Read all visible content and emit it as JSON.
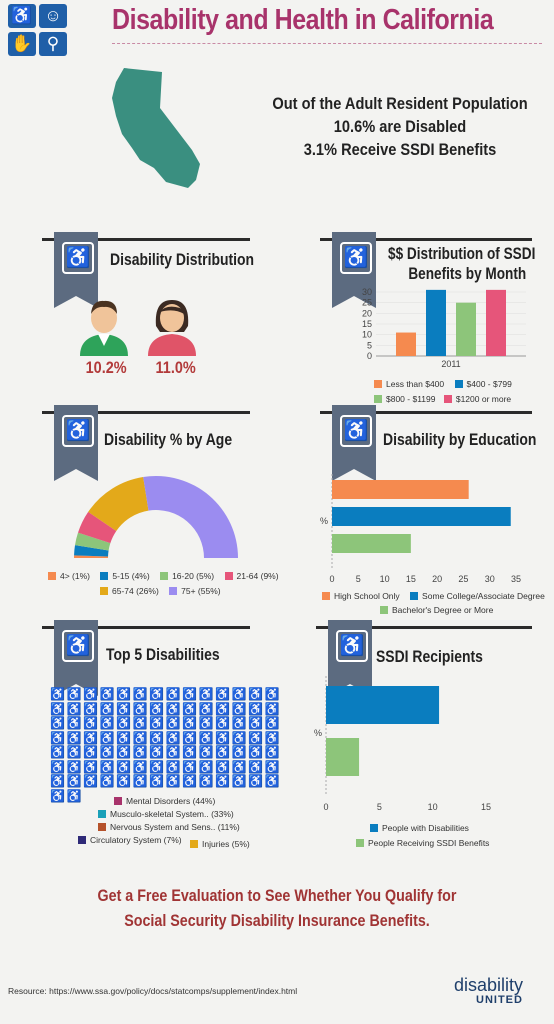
{
  "header": {
    "title": "Disability and Health in California",
    "headline_lines": [
      "Out of the Adult Resident Population",
      "10.6% are Disabled",
      "3.1% Receive SSDI Benefits"
    ]
  },
  "colors": {
    "title": "#a8336b",
    "ribbon": "#5c6b80",
    "state": "#3a8f80",
    "orange": "#f58a4f",
    "blue": "#0a7dbf",
    "green": "#8dc57a",
    "pink": "#e6557a",
    "gold": "#e3a91a",
    "purple": "#9b8cf0"
  },
  "sections": {
    "distribution": {
      "title": "Disability Distribution",
      "male_pct": "10.2%",
      "female_pct": "11.0%"
    },
    "ssdi_month": {
      "title_line1": "$$ Distribution of SSDI",
      "title_line2": "Benefits by Month"
    },
    "age": {
      "title": "Disability % by Age"
    },
    "education": {
      "title": "Disability by Education"
    },
    "top5": {
      "title": "Top 5 Disabilities"
    },
    "recipients": {
      "title": "SSDI Recipients"
    }
  },
  "chart_data": [
    {
      "type": "bar",
      "title": "$$ Distribution of SSDI Benefits by Month",
      "categories": [
        "2011"
      ],
      "ylim": [
        0,
        30
      ],
      "yticks": [
        "0",
        "5",
        "10",
        "15",
        "20",
        "25",
        "30"
      ],
      "series": [
        {
          "name": "Less than $400",
          "values": [
            11
          ],
          "color": "#f58a4f"
        },
        {
          "name": "$400 - $799",
          "values": [
            31
          ],
          "color": "#0a7dbf"
        },
        {
          "name": "$800 - $1199",
          "values": [
            25
          ],
          "color": "#8dc57a"
        },
        {
          "name": "$1200 or more",
          "values": [
            31
          ],
          "color": "#e6557a"
        }
      ]
    },
    {
      "type": "pie",
      "title": "Disability % by Age",
      "slices": [
        {
          "label": "4> (1%)",
          "value": 1,
          "color": "#f58a4f"
        },
        {
          "label": "5-15 (4%)",
          "value": 4,
          "color": "#0a7dbf"
        },
        {
          "label": "16-20 (5%)",
          "value": 5,
          "color": "#8dc57a"
        },
        {
          "label": "21-64 (9%)",
          "value": 9,
          "color": "#e6557a"
        },
        {
          "label": "65-74 (26%)",
          "value": 26,
          "color": "#e3a91a"
        },
        {
          "label": "75+ (55%)",
          "value": 55,
          "color": "#9b8cf0"
        }
      ]
    },
    {
      "type": "bar",
      "orientation": "horizontal",
      "title": "Disability by Education",
      "ylabel": "%",
      "xlim": [
        0,
        35
      ],
      "xticks": [
        "0",
        "5",
        "10",
        "15",
        "20",
        "25",
        "30",
        "35"
      ],
      "series": [
        {
          "name": "High School Only",
          "values": [
            26
          ],
          "color": "#f58a4f"
        },
        {
          "name": "Some College/Associate Degree",
          "values": [
            34
          ],
          "color": "#0a7dbf"
        },
        {
          "name": "Bachelor's Degree or More",
          "values": [
            15
          ],
          "color": "#8dc57a"
        }
      ]
    },
    {
      "type": "bar",
      "orientation": "horizontal",
      "title": "SSDI Recipients",
      "ylabel": "%",
      "xlim": [
        0,
        15
      ],
      "xticks": [
        "0",
        "5",
        "10",
        "15"
      ],
      "series": [
        {
          "name": "People with Disabilities",
          "values": [
            10.6
          ],
          "color": "#0a7dbf"
        },
        {
          "name": "People Receiving SSDI Benefits",
          "values": [
            3.1
          ],
          "color": "#8dc57a"
        }
      ]
    },
    {
      "type": "pictograph",
      "title": "Top 5 Disabilities",
      "categories": [
        {
          "label": "Mental Disorders (44%)",
          "value": 44,
          "color": "#a8336b"
        },
        {
          "label": "Musculo-skeletal System.. (33%)",
          "value": 33,
          "color": "#1aa0b8"
        },
        {
          "label": "Nervous System and Sens.. (11%)",
          "value": 11,
          "color": "#b5522b"
        },
        {
          "label": "Circulatory System (7%)",
          "value": 7,
          "color": "#2e2a78"
        },
        {
          "label": "Injuries (5%)",
          "value": 5,
          "color": "#e3a91a"
        }
      ]
    }
  ],
  "footer": {
    "cta": "Get a Free Evaluation to See Whether You Qualify for Social Security Disability Insurance Benefits.",
    "resource": "Resource: https://www.ssa.gov/policy/docs/statcomps/supplement/index.html",
    "brand_top": "disability",
    "brand_bottom": "UNITED"
  }
}
